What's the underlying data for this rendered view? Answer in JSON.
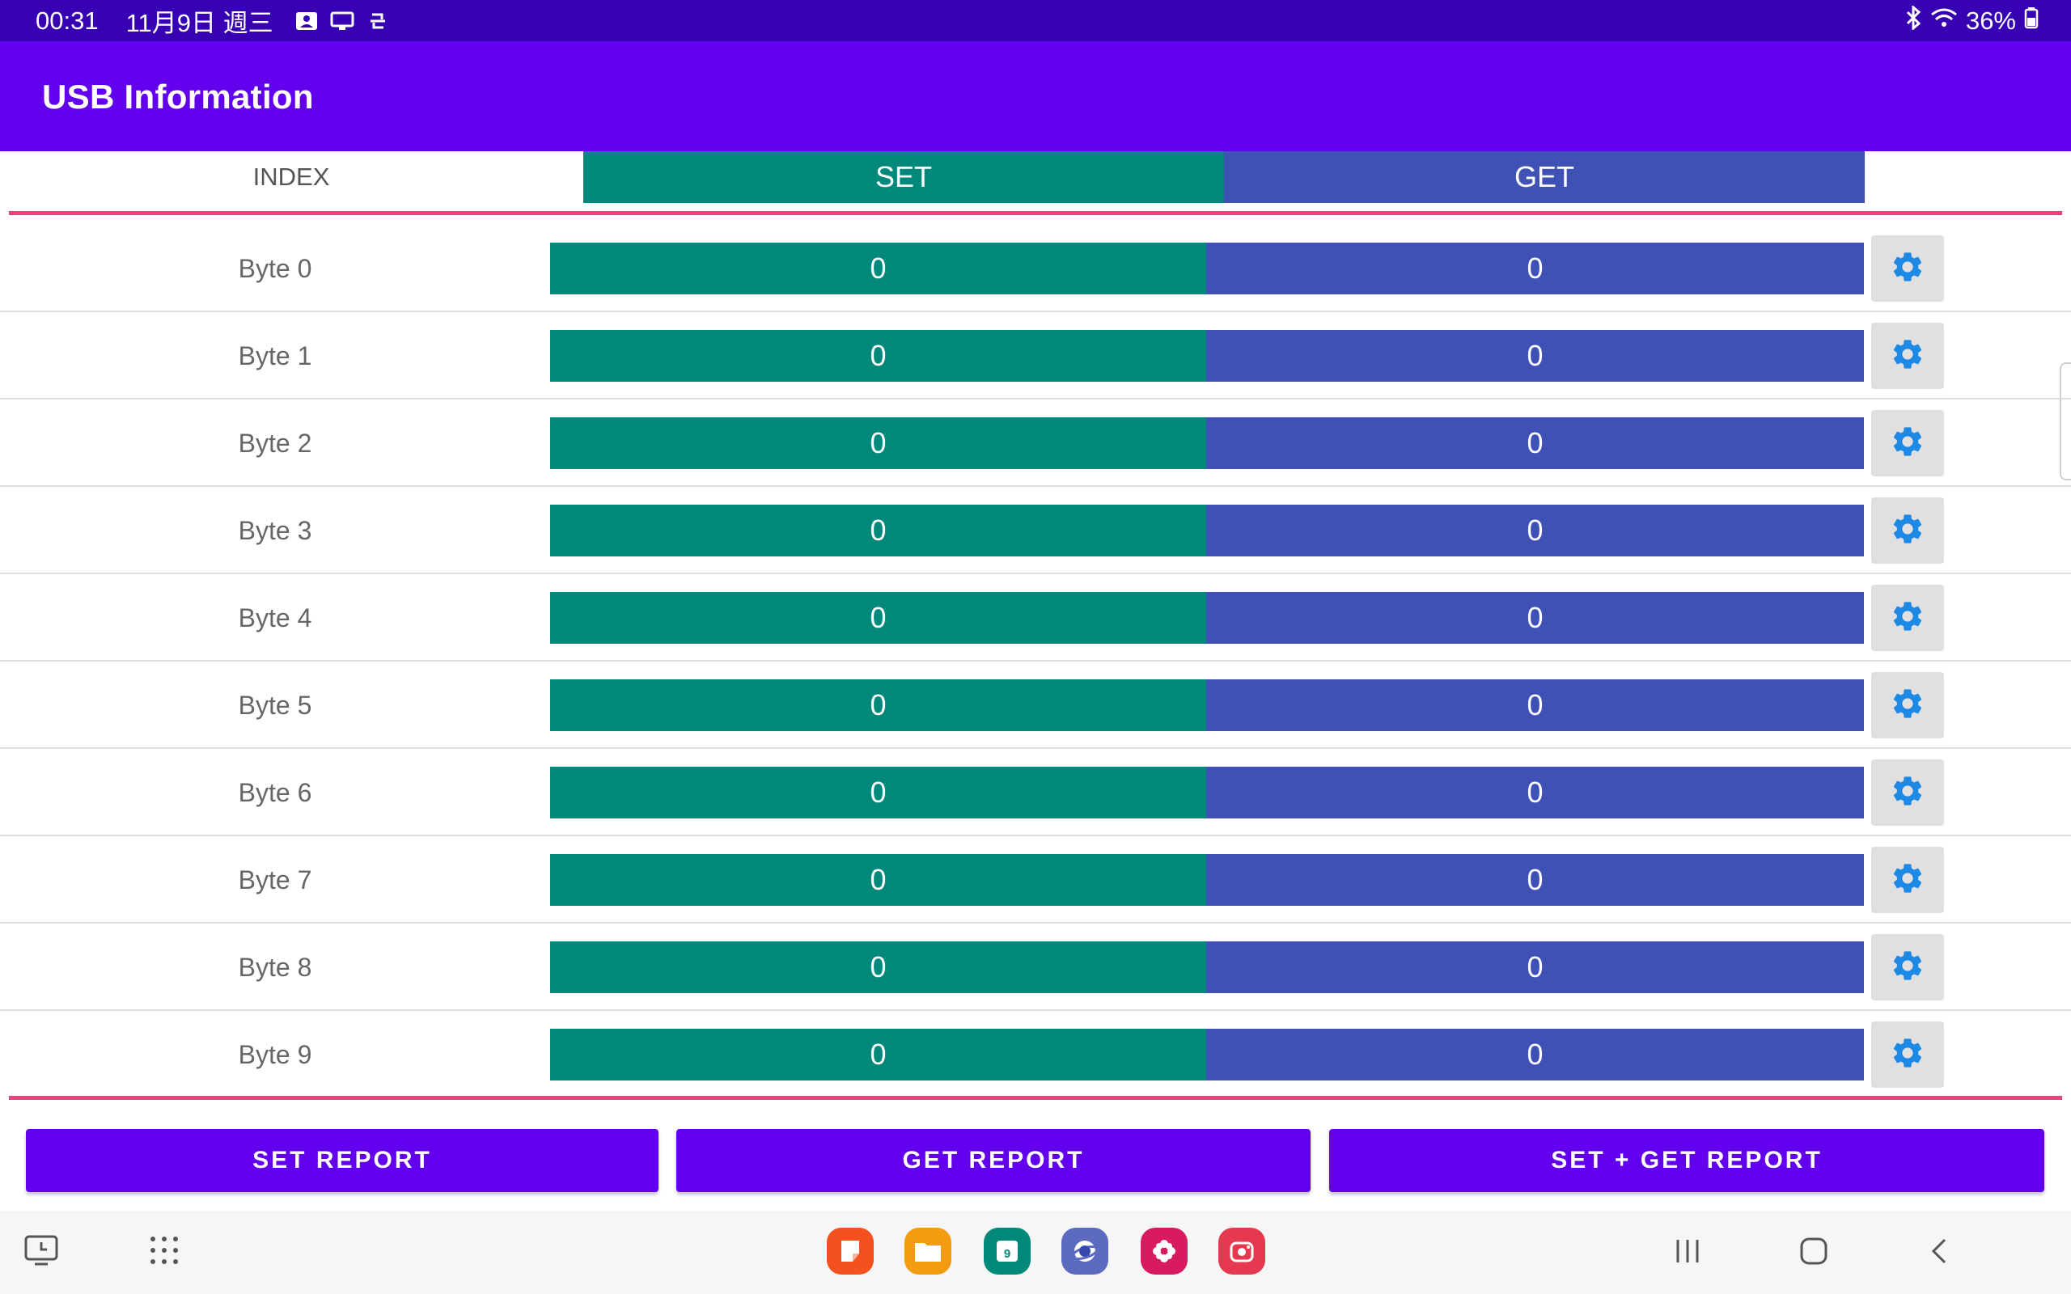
{
  "status_bar": {
    "time": "00:31",
    "date": "11月9日 週三",
    "battery": "36%",
    "left_icons": [
      "gallery-icon",
      "screen-icon",
      "sync-icon"
    ],
    "right_icons": [
      "bluetooth-icon",
      "wifi-icon",
      "battery-icon"
    ]
  },
  "app_bar": {
    "title": "USB Information"
  },
  "table": {
    "headers": {
      "index": "INDEX",
      "set": "SET",
      "get": "GET"
    },
    "rows": [
      {
        "label": "Byte 0",
        "set": "0",
        "get": "0"
      },
      {
        "label": "Byte 1",
        "set": "0",
        "get": "0"
      },
      {
        "label": "Byte 2",
        "set": "0",
        "get": "0"
      },
      {
        "label": "Byte 3",
        "set": "0",
        "get": "0"
      },
      {
        "label": "Byte 4",
        "set": "0",
        "get": "0"
      },
      {
        "label": "Byte 5",
        "set": "0",
        "get": "0"
      },
      {
        "label": "Byte 6",
        "set": "0",
        "get": "0"
      },
      {
        "label": "Byte 7",
        "set": "0",
        "get": "0"
      },
      {
        "label": "Byte 8",
        "set": "0",
        "get": "0"
      },
      {
        "label": "Byte 9",
        "set": "0",
        "get": "0"
      }
    ]
  },
  "actions": {
    "set_report": "SET REPORT",
    "get_report": "GET REPORT",
    "set_get_report": "SET + GET REPORT"
  },
  "colors": {
    "status_bar": "#3700b3",
    "app_bar": "#6200ee",
    "set_column": "#00897b",
    "get_column": "#3f51b5",
    "divider": "#ec407a",
    "gear": "#1e88e5"
  },
  "taskbar": {
    "apps": [
      "notes-app-icon",
      "files-app-icon",
      "calendar-app-icon",
      "internet-app-icon",
      "flower-app-icon",
      "camera-app-icon"
    ],
    "calendar_day": "9"
  }
}
